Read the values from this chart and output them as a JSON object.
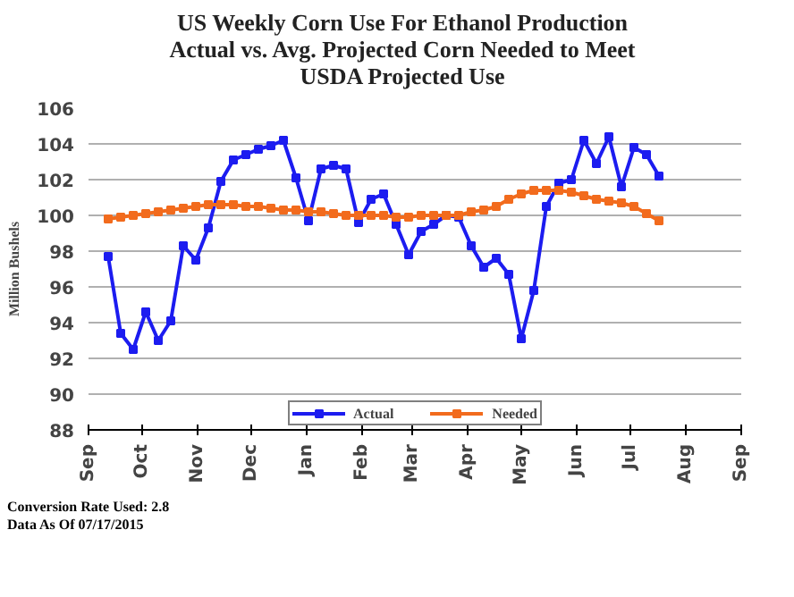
{
  "chart_data": {
    "type": "line",
    "title": "US Weekly  Corn Use For Ethanol Production\nActual vs. Avg. Projected Corn Needed to Meet\nUSDA Projected Use",
    "ylabel": "Million Bushels",
    "x": [
      "2014-09-12",
      "2014-09-19",
      "2014-09-26",
      "2014-10-03",
      "2014-10-10",
      "2014-10-17",
      "2014-10-24",
      "2014-10-31",
      "2014-11-07",
      "2014-11-14",
      "2014-11-21",
      "2014-11-28",
      "2014-12-05",
      "2014-12-12",
      "2014-12-19",
      "2014-12-26",
      "2015-01-02",
      "2015-01-09",
      "2015-01-16",
      "2015-01-23",
      "2015-01-30",
      "2015-02-06",
      "2015-02-13",
      "2015-02-20",
      "2015-02-27",
      "2015-03-06",
      "2015-03-13",
      "2015-03-20",
      "2015-03-27",
      "2015-04-03",
      "2015-04-10",
      "2015-04-17",
      "2015-04-24",
      "2015-05-01",
      "2015-05-08",
      "2015-05-15",
      "2015-05-22",
      "2015-05-29",
      "2015-06-05",
      "2015-06-12",
      "2015-06-19",
      "2015-06-26",
      "2015-07-03",
      "2015-07-10",
      "2015-07-17"
    ],
    "series": [
      {
        "name": "Actual",
        "color": "#1c1cf0",
        "values": [
          97.7,
          93.4,
          92.5,
          94.6,
          93.0,
          94.1,
          98.3,
          97.5,
          99.3,
          101.9,
          103.1,
          103.4,
          103.7,
          103.9,
          104.2,
          102.1,
          99.7,
          102.6,
          102.8,
          102.6,
          99.6,
          100.9,
          101.2,
          99.5,
          97.8,
          99.1,
          99.5,
          100.0,
          99.9,
          98.3,
          97.1,
          97.6,
          96.7,
          93.1,
          95.8,
          100.5,
          101.8,
          102.0,
          104.2,
          102.9,
          104.4,
          101.6,
          103.8,
          103.4,
          102.2
        ]
      },
      {
        "name": "Needed",
        "color": "#f26b1d",
        "values": [
          99.8,
          99.9,
          100.0,
          100.1,
          100.2,
          100.3,
          100.4,
          100.5,
          100.6,
          100.6,
          100.6,
          100.5,
          100.5,
          100.4,
          100.3,
          100.3,
          100.2,
          100.2,
          100.1,
          100.0,
          100.0,
          100.0,
          100.0,
          99.9,
          99.9,
          100.0,
          100.0,
          100.0,
          100.0,
          100.2,
          100.3,
          100.5,
          100.9,
          101.2,
          101.4,
          101.4,
          101.4,
          101.3,
          101.1,
          100.9,
          100.8,
          100.7,
          100.5,
          100.1,
          99.7
        ]
      }
    ],
    "marker": "square",
    "line_style": "solid",
    "grid": "y",
    "legend": "bottom",
    "xlim": [
      "2014-09-01",
      "2015-09-01"
    ],
    "xticks": [
      {
        "value": "2014-09-01",
        "label": "Sep"
      },
      {
        "value": "2014-10-01",
        "label": "Oct"
      },
      {
        "value": "2014-11-01",
        "label": "Nov"
      },
      {
        "value": "2014-12-01",
        "label": "Dec"
      },
      {
        "value": "2015-01-01",
        "label": "Jan"
      },
      {
        "value": "2015-02-01",
        "label": "Feb"
      },
      {
        "value": "2015-03-01",
        "label": "Mar"
      },
      {
        "value": "2015-04-01",
        "label": "Apr"
      },
      {
        "value": "2015-05-01",
        "label": "May"
      },
      {
        "value": "2015-06-01",
        "label": "Jun"
      },
      {
        "value": "2015-07-01",
        "label": "Jul"
      },
      {
        "value": "2015-08-01",
        "label": "Aug"
      },
      {
        "value": "2015-09-01",
        "label": "Sep"
      }
    ],
    "ylim": [
      88,
      106
    ],
    "yticks": [
      88,
      90,
      92,
      94,
      96,
      98,
      100,
      102,
      104,
      106
    ],
    "annotations": [
      "Conversion Rate Used: 2.8",
      "Data As Of 07/17/2015"
    ]
  }
}
